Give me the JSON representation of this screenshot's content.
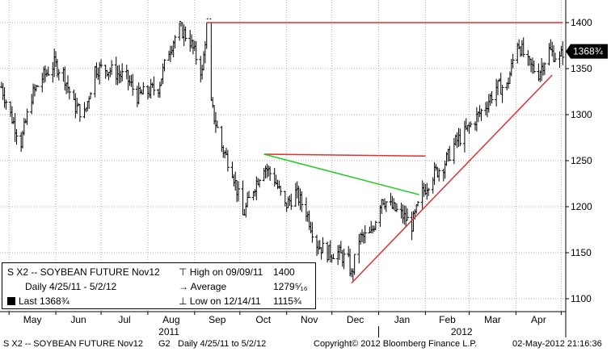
{
  "chart_data": {
    "type": "line",
    "subtype": "ohlc-bars-daily",
    "title": "S X2 -- SOYBEAN FUTURE Nov12",
    "period": "Daily 4/25/11 - 5/2/12",
    "x_month_labels": [
      "May",
      "Jun",
      "Jul",
      "Aug",
      "Sep",
      "Oct",
      "Nov",
      "Dec",
      "Jan",
      "Feb",
      "Mar",
      "Apr"
    ],
    "x_year_labels": [
      "2011",
      "2012"
    ],
    "y_tick_labels": [
      "1100",
      "1150",
      "1200",
      "1250",
      "1300",
      "1350",
      "1400"
    ],
    "ylim": [
      1090,
      1420
    ],
    "grid": true,
    "series": [
      {
        "x": [
          "2011-04-26",
          "2011-05-02",
          "2011-05-09",
          "2011-05-16",
          "2011-05-23",
          "2011-05-31",
          "2011-06-06",
          "2011-06-13",
          "2011-06-20",
          "2011-06-27",
          "2011-07-05",
          "2011-07-11",
          "2011-07-18",
          "2011-07-25",
          "2011-08-01",
          "2011-08-08",
          "2011-08-15",
          "2011-08-22",
          "2011-08-29",
          "2011-09-06",
          "2011-09-09",
          "2011-09-12",
          "2011-09-19",
          "2011-09-26",
          "2011-10-03",
          "2011-10-10",
          "2011-10-17",
          "2011-10-24",
          "2011-10-31",
          "2011-11-07",
          "2011-11-14",
          "2011-11-21",
          "2011-11-28",
          "2011-12-05",
          "2011-12-12",
          "2011-12-14",
          "2011-12-19",
          "2011-12-27",
          "2012-01-03",
          "2012-01-09",
          "2012-01-17",
          "2012-01-23",
          "2012-01-30",
          "2012-02-06",
          "2012-02-13",
          "2012-02-21",
          "2012-02-27",
          "2012-03-05",
          "2012-03-12",
          "2012-03-19",
          "2012-03-26",
          "2012-04-02",
          "2012-04-09",
          "2012-04-16",
          "2012-04-23",
          "2012-04-30",
          "2012-05-02"
        ],
        "close": [
          1330,
          1300,
          1270,
          1320,
          1340,
          1355,
          1345,
          1310,
          1300,
          1350,
          1350,
          1345,
          1340,
          1320,
          1325,
          1330,
          1370,
          1395,
          1380,
          1345,
          1400,
          1310,
          1265,
          1240,
          1190,
          1220,
          1245,
          1230,
          1200,
          1215,
          1195,
          1160,
          1150,
          1150,
          1140,
          1125,
          1165,
          1170,
          1210,
          1200,
          1190,
          1180,
          1215,
          1235,
          1245,
          1270,
          1280,
          1295,
          1310,
          1330,
          1330,
          1380,
          1355,
          1345,
          1370,
          1360,
          1368.75
        ]
      }
    ],
    "annotations": [
      {
        "type": "resistance",
        "from": "2011-09-09",
        "to": "2012-05-02",
        "level": 1400,
        "color": "#e03030"
      },
      {
        "type": "resistance",
        "from": "2011-10-17",
        "to": "2012-02-01",
        "from_level": 1257,
        "to_level": 1255,
        "color": "#e03030"
      },
      {
        "type": "trendline",
        "from": "2011-10-17",
        "to": "2012-01-28",
        "from_level": 1257,
        "to_level": 1213,
        "color": "#22cc22"
      },
      {
        "type": "support",
        "from": "2011-12-14",
        "to": "2012-04-25",
        "from_level": 1117,
        "to_level": 1343,
        "color": "#e03030"
      }
    ],
    "last_price_label": "1368¾"
  },
  "legend": {
    "title": "S X2 -- SOYBEAN FUTURE  Nov12",
    "period": "Daily  4/25/11 - 5/2/12",
    "last": "Last 1368¾",
    "high_label": "High on 09/09/11",
    "high_value": "1400",
    "avg_label": "Average",
    "avg_value": "1279⁵⁄₁₆",
    "low_label": "Low on 12/14/11",
    "low_value": "1115¾"
  },
  "footer": {
    "ticker": "S X2 -- SOYBEAN FUTURE  Nov12",
    "series_code": "G2",
    "desc": "Daily  4/25/11 to 5/2/12",
    "copyright": "Copyright© 2012 Bloomberg Finance L.P.",
    "timestamp": "02-May-2012 21:16:36"
  },
  "colors": {
    "bars": "#000000",
    "grid": "#b0b0b0",
    "resistance": "#e03030",
    "trend_green": "#22cc22",
    "last_tag_bg": "#000000",
    "last_tag_fg": "#ffffff"
  }
}
